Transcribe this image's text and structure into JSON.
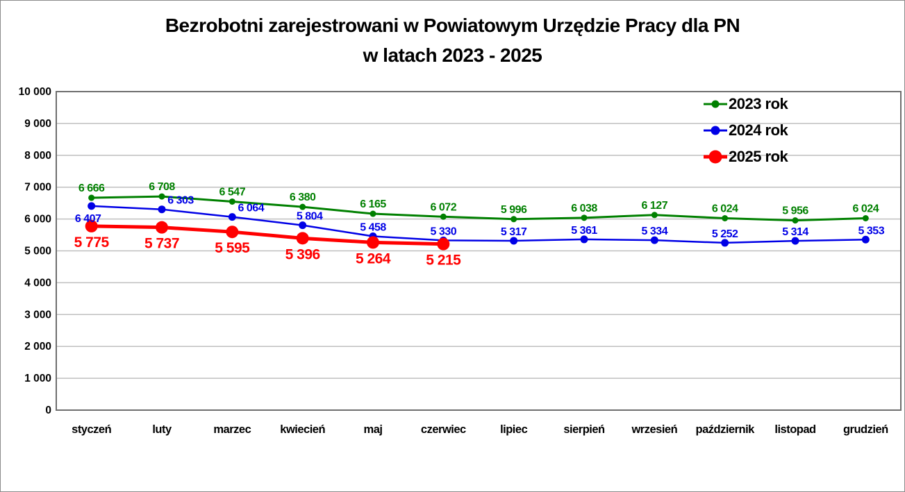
{
  "title": {
    "line1": "Bezrobotni zarejestrowani w Powiatowym Urzędzie Pracy dla PN",
    "line2": "w latach 2023 - 2025"
  },
  "chart_data": {
    "type": "line",
    "title": "Bezrobotni zarejestrowani w Powiatowym Urzędzie Pracy dla PN w latach 2023 - 2025",
    "categories": [
      "styczeń",
      "luty",
      "marzec",
      "kwiecień",
      "maj",
      "czerwiec",
      "lipiec",
      "sierpień",
      "wrzesień",
      "październik",
      "listopad",
      "grudzień"
    ],
    "series": [
      {
        "name": "2023 rok",
        "color": "#008000",
        "values": [
          6666,
          6708,
          6547,
          6380,
          6165,
          6072,
          5996,
          6038,
          6127,
          6024,
          5956,
          6024
        ]
      },
      {
        "name": "2024 rok",
        "color": "#0000E6",
        "values": [
          6407,
          6303,
          6064,
          5804,
          5458,
          5330,
          5317,
          5361,
          5334,
          5252,
          5314,
          5353
        ]
      },
      {
        "name": "2025 rok",
        "color": "#FF0000",
        "values": [
          5775,
          5737,
          5595,
          5396,
          5264,
          5215
        ]
      }
    ],
    "ylim": [
      0,
      10000
    ],
    "y_tick_step": 1000,
    "y_ticks": [
      "0",
      "1 000",
      "2 000",
      "3 000",
      "4 000",
      "5 000",
      "6 000",
      "7 000",
      "8 000",
      "9 000",
      "10 000"
    ],
    "grid": true,
    "legend_position": "top-right",
    "xlabel": "",
    "ylabel": ""
  }
}
